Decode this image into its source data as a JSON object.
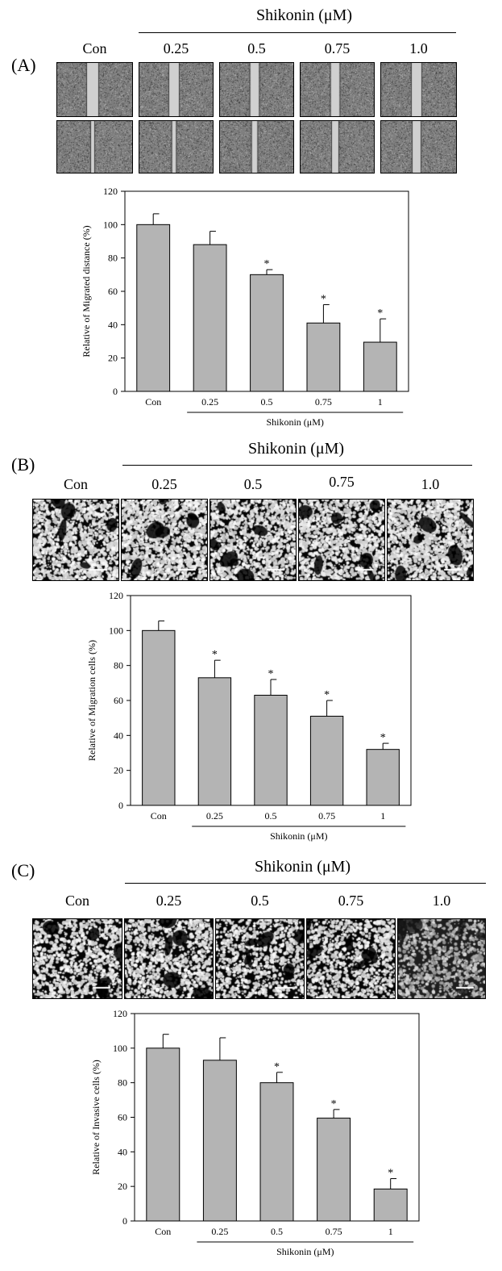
{
  "colors": {
    "bar": "#b4b4b4",
    "axis": "#000000",
    "text": "#000000"
  },
  "panels": [
    {
      "label": "(A)",
      "treatment_header": "Shikonin (μM)",
      "image_columns": [
        "Con",
        "0.25",
        "0.5",
        "0.75",
        "1.0"
      ],
      "image_rows": 2,
      "image_kind": "wound-healing",
      "chart_data": {
        "type": "bar",
        "categories": [
          "Con",
          "0.25",
          "0.5",
          "0.75",
          "1"
        ],
        "values": [
          100,
          88,
          70,
          41,
          29.5
        ],
        "errors": [
          6.5,
          8,
          3,
          11,
          14
        ],
        "significance": [
          "",
          "",
          "*",
          "*",
          "*"
        ],
        "ylabel": "Relative of Migrated distance (%)",
        "xlabel": "Shikonin (μM)",
        "ylim": [
          0,
          120
        ],
        "yticks": [
          0,
          20,
          40,
          60,
          80,
          100,
          120
        ],
        "grid": false
      }
    },
    {
      "label": "(B)",
      "treatment_header": "Shikonin (μM)",
      "image_columns": [
        "Con",
        "0.25",
        "0.5",
        "0.75",
        "1.0"
      ],
      "image_rows": 1,
      "image_kind": "migration",
      "chart_data": {
        "type": "bar",
        "categories": [
          "Con",
          "0.25",
          "0.5",
          "0.75",
          "1"
        ],
        "values": [
          100,
          73,
          63,
          51,
          32
        ],
        "errors": [
          5.5,
          10,
          9,
          9,
          3.5
        ],
        "significance": [
          "",
          "*",
          "*",
          "*",
          "*"
        ],
        "ylabel": "Relative of Migration cells (%)",
        "xlabel": "Shikonin (μM)",
        "ylim": [
          0,
          120
        ],
        "yticks": [
          0,
          20,
          40,
          60,
          80,
          100,
          120
        ],
        "grid": false
      }
    },
    {
      "label": "(C)",
      "treatment_header": "Shikonin (μM)",
      "image_columns": [
        "Con",
        "0.25",
        "0.5",
        "0.75",
        "1.0"
      ],
      "image_rows": 1,
      "image_kind": "invasion",
      "chart_data": {
        "type": "bar",
        "categories": [
          "Con",
          "0.25",
          "0.5",
          "0.75",
          "1"
        ],
        "values": [
          100,
          93,
          80,
          59.5,
          18.5
        ],
        "errors": [
          8,
          13,
          6,
          5,
          6
        ],
        "significance": [
          "",
          "",
          "*",
          "*",
          "*"
        ],
        "ylabel": "Relative of Invasive cells (%)",
        "xlabel": "Shikonin (μM)",
        "ylim": [
          0,
          120
        ],
        "yticks": [
          0,
          20,
          40,
          60,
          80,
          100,
          120
        ],
        "grid": false
      }
    }
  ]
}
